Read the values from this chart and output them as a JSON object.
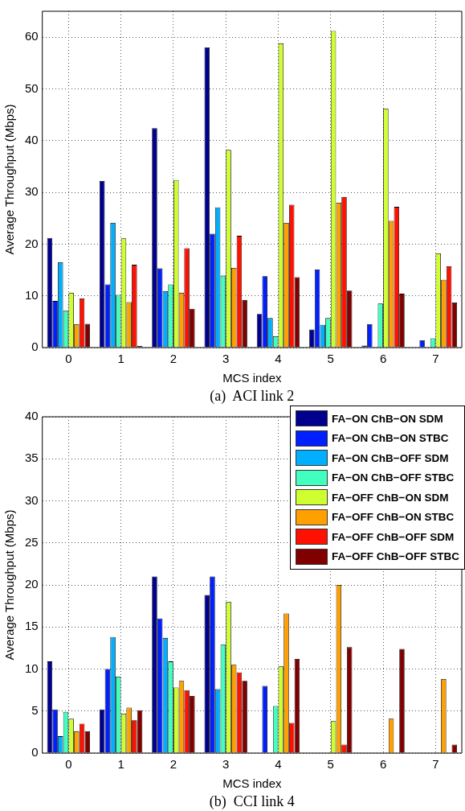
{
  "chart_data": [
    {
      "type": "bar",
      "categories": [
        "0",
        "1",
        "2",
        "3",
        "4",
        "5",
        "6",
        "7"
      ],
      "xlabel": "MCS index",
      "ylabel": "Average Throughput (Mbps)",
      "ylim": [
        0,
        65
      ],
      "yticks": [
        0,
        10,
        20,
        30,
        40,
        50,
        60
      ],
      "grid": true,
      "annotations": [
        "(a)  ACI link 2"
      ],
      "series": [
        {
          "color": "#00008f",
          "values": [
            21.2,
            32.2,
            42.4,
            58.0,
            6.5,
            3.5,
            0.4,
            0
          ]
        },
        {
          "color": "#0020ff",
          "values": [
            9.0,
            12.2,
            15.3,
            22.0,
            13.8,
            15.1,
            4.5,
            1.4
          ]
        },
        {
          "color": "#00afff",
          "values": [
            16.5,
            24.1,
            10.9,
            27.1,
            5.7,
            4.4,
            0,
            0
          ]
        },
        {
          "color": "#40ffbf",
          "values": [
            7.1,
            10.2,
            12.2,
            13.9,
            2.2,
            5.7,
            8.5,
            1.8
          ]
        },
        {
          "color": "#cfff30",
          "values": [
            10.6,
            21.1,
            32.4,
            38.2,
            58.8,
            61.2,
            46.2,
            18.2
          ]
        },
        {
          "color": "#ff9f00",
          "values": [
            4.5,
            8.8,
            10.6,
            15.4,
            24.1,
            28.0,
            24.5,
            13.1
          ]
        },
        {
          "color": "#ff1000",
          "values": [
            9.5,
            16.0,
            19.2,
            21.6,
            27.6,
            29.1,
            27.2,
            15.7
          ]
        },
        {
          "color": "#800000",
          "values": [
            4.6,
            0.3,
            7.5,
            9.2,
            13.6,
            11.0,
            10.4,
            8.7
          ]
        }
      ]
    },
    {
      "type": "bar",
      "categories": [
        "0",
        "1",
        "2",
        "3",
        "4",
        "5",
        "6",
        "7"
      ],
      "xlabel": "MCS index",
      "ylabel": "Average Throughput (Mbps)",
      "ylim": [
        0,
        40
      ],
      "yticks": [
        0,
        5,
        10,
        15,
        20,
        25,
        30,
        35,
        40
      ],
      "grid": true,
      "legend": "top right",
      "annotations": [
        "(b)  CCI link 4"
      ],
      "series": [
        {
          "name": "FA−ON ChB−ON SDM",
          "color": "#00008f",
          "values": [
            10.9,
            5.2,
            21.0,
            18.8,
            0,
            0,
            0,
            0
          ]
        },
        {
          "name": "FA−ON ChB−ON STBC",
          "color": "#0020ff",
          "values": [
            5.2,
            10.0,
            16.0,
            21.0,
            8.0,
            0,
            0,
            0
          ]
        },
        {
          "name": "FA−ON ChB−OFF SDM",
          "color": "#00afff",
          "values": [
            2.0,
            13.8,
            13.7,
            7.6,
            0,
            0,
            0,
            0
          ]
        },
        {
          "name": "FA−ON ChB−OFF STBC",
          "color": "#40ffbf",
          "values": [
            4.9,
            9.1,
            10.9,
            12.9,
            5.6,
            0,
            0,
            0
          ]
        },
        {
          "name": "FA−OFF ChB−ON SDM",
          "color": "#cfff30",
          "values": [
            4.1,
            4.7,
            7.8,
            18.0,
            10.3,
            3.8,
            0,
            0
          ]
        },
        {
          "name": "FA−OFF ChB−ON STBC",
          "color": "#ff9f00",
          "values": [
            2.6,
            5.4,
            8.6,
            10.5,
            16.6,
            20.0,
            4.1,
            8.8
          ]
        },
        {
          "name": "FA−OFF ChB−OFF SDM",
          "color": "#ff1000",
          "values": [
            3.5,
            3.9,
            7.5,
            9.6,
            3.6,
            1.0,
            0,
            0
          ]
        },
        {
          "name": "FA−OFF ChB−OFF STBC",
          "color": "#800000",
          "values": [
            2.6,
            5.1,
            6.8,
            8.6,
            11.2,
            12.6,
            12.4,
            1.0
          ]
        }
      ]
    }
  ]
}
